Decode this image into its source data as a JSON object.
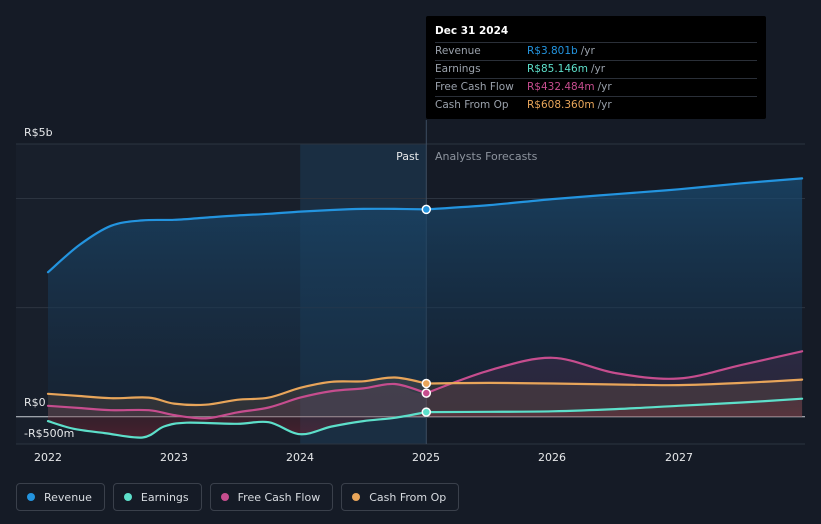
{
  "chart_data": {
    "type": "line",
    "currency_prefix": "R$",
    "y_unit": "millions",
    "ylim": [
      -500,
      5000
    ],
    "y_tick_labels": [
      {
        "value": 5000,
        "label": "R$5b"
      },
      {
        "value": 0,
        "label": "R$0"
      },
      {
        "value": -500,
        "label": "-R$500m"
      }
    ],
    "xlim": [
      2022.0,
      2027.98
    ],
    "x_ticks": [
      {
        "value": 2022,
        "label": "2022"
      },
      {
        "value": 2023,
        "label": "2023"
      },
      {
        "value": 2024,
        "label": "2024"
      },
      {
        "value": 2025,
        "label": "2025"
      },
      {
        "value": 2026,
        "label": "2026"
      },
      {
        "value": 2027,
        "label": "2027"
      }
    ],
    "divider_x": 2025.0,
    "highlight_start_x": 2024.0,
    "past_label": "Past",
    "forecast_label": "Analysts Forecasts",
    "series": [
      {
        "name": "Revenue",
        "color": "#2394df",
        "fill": true,
        "past": [
          [
            2022.0,
            2650
          ],
          [
            2022.25,
            3150
          ],
          [
            2022.5,
            3500
          ],
          [
            2022.75,
            3600
          ],
          [
            2023.0,
            3610
          ],
          [
            2023.25,
            3650
          ],
          [
            2023.5,
            3690
          ],
          [
            2023.75,
            3720
          ],
          [
            2024.0,
            3760
          ],
          [
            2024.25,
            3790
          ],
          [
            2024.5,
            3810
          ],
          [
            2024.75,
            3810
          ],
          [
            2025.0,
            3801
          ]
        ],
        "forecast": [
          [
            2025.0,
            3801
          ],
          [
            2025.5,
            3880
          ],
          [
            2026.0,
            3990
          ],
          [
            2026.5,
            4080
          ],
          [
            2027.0,
            4170
          ],
          [
            2027.5,
            4280
          ],
          [
            2027.98,
            4370
          ]
        ]
      },
      {
        "name": "Earnings",
        "color": "#5ddfca",
        "fill": true,
        "past": [
          [
            2022.0,
            -80
          ],
          [
            2022.2,
            -220
          ],
          [
            2022.45,
            -300
          ],
          [
            2022.75,
            -380
          ],
          [
            2022.92,
            -180
          ],
          [
            2023.1,
            -110
          ],
          [
            2023.5,
            -130
          ],
          [
            2023.75,
            -100
          ],
          [
            2024.0,
            -320
          ],
          [
            2024.25,
            -180
          ],
          [
            2024.5,
            -80
          ],
          [
            2024.75,
            -20
          ],
          [
            2025.0,
            85.146
          ]
        ],
        "forecast": [
          [
            2025.0,
            85.146
          ],
          [
            2025.5,
            90
          ],
          [
            2026.0,
            100
          ],
          [
            2026.5,
            140
          ],
          [
            2027.0,
            200
          ],
          [
            2027.5,
            260
          ],
          [
            2027.98,
            330
          ]
        ]
      },
      {
        "name": "Free Cash Flow",
        "color": "#c64d8e",
        "fill": true,
        "past": [
          [
            2022.0,
            200
          ],
          [
            2022.25,
            160
          ],
          [
            2022.5,
            120
          ],
          [
            2022.8,
            120
          ],
          [
            2023.0,
            30
          ],
          [
            2023.25,
            -30
          ],
          [
            2023.5,
            80
          ],
          [
            2023.75,
            170
          ],
          [
            2024.0,
            350
          ],
          [
            2024.25,
            470
          ],
          [
            2024.5,
            520
          ],
          [
            2024.75,
            600
          ],
          [
            2025.0,
            432.484
          ]
        ],
        "forecast": [
          [
            2025.0,
            432.484
          ],
          [
            2025.5,
            850
          ],
          [
            2026.0,
            1080
          ],
          [
            2026.5,
            800
          ],
          [
            2027.0,
            700
          ],
          [
            2027.5,
            950
          ],
          [
            2027.98,
            1200
          ]
        ]
      },
      {
        "name": "Cash From Op",
        "color": "#e8a55a",
        "fill": true,
        "past": [
          [
            2022.0,
            420
          ],
          [
            2022.25,
            380
          ],
          [
            2022.5,
            340
          ],
          [
            2022.8,
            350
          ],
          [
            2023.0,
            240
          ],
          [
            2023.25,
            220
          ],
          [
            2023.5,
            310
          ],
          [
            2023.75,
            350
          ],
          [
            2024.0,
            530
          ],
          [
            2024.25,
            640
          ],
          [
            2024.5,
            650
          ],
          [
            2024.75,
            720
          ],
          [
            2025.0,
            608.36
          ]
        ],
        "forecast": [
          [
            2025.0,
            608.36
          ],
          [
            2025.5,
            620
          ],
          [
            2026.0,
            610
          ],
          [
            2026.5,
            590
          ],
          [
            2027.0,
            580
          ],
          [
            2027.5,
            620
          ],
          [
            2027.98,
            680
          ]
        ]
      }
    ]
  },
  "tooltip": {
    "date": "Dec 31 2024",
    "rows": [
      {
        "label": "Revenue",
        "value": "R$3.801b",
        "unit": "/yr",
        "color": "#2394df"
      },
      {
        "label": "Earnings",
        "value": "R$85.146m",
        "unit": "/yr",
        "color": "#5ddfca"
      },
      {
        "label": "Free Cash Flow",
        "value": "R$432.484m",
        "unit": "/yr",
        "color": "#c64d8e"
      },
      {
        "label": "Cash From Op",
        "value": "R$608.360m",
        "unit": "/yr",
        "color": "#e8a55a"
      }
    ]
  },
  "legend": [
    {
      "label": "Revenue",
      "color": "#2394df"
    },
    {
      "label": "Earnings",
      "color": "#5ddfca"
    },
    {
      "label": "Free Cash Flow",
      "color": "#c64d8e"
    },
    {
      "label": "Cash From Op",
      "color": "#e8a55a"
    }
  ]
}
